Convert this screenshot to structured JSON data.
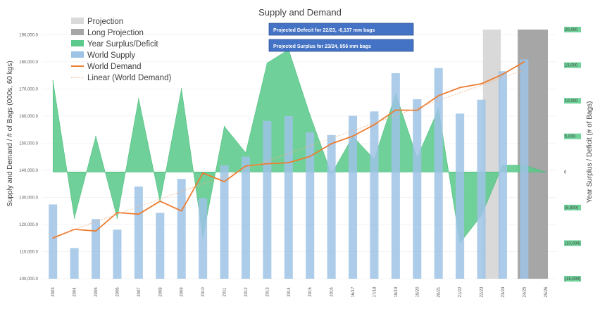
{
  "chart_data": {
    "type": "bar",
    "title": "Supply and Demand",
    "ylabel": "Supply and Demand / # of Bags (000s, 60 kgs)",
    "y2label": "Year Surplus / Deficit (# of Bags)",
    "ylim": [
      100000,
      195000
    ],
    "y2lim": [
      -15000,
      20000
    ],
    "y_ticks": [
      "100,000.0",
      "110,000.0",
      "120,000.0",
      "130,000.0",
      "140,000.0",
      "150,000.0",
      "160,000.0",
      "170,000.0",
      "180,000.0",
      "190,000.0"
    ],
    "y2_ticks": [
      "(15,000)",
      "(10,000)",
      "(5,000)",
      "0",
      "5,000",
      "10,000",
      "15,000",
      "20,000"
    ],
    "y2_tick_values": [
      -15000,
      -10000,
      -5000,
      0,
      5000,
      10000,
      15000,
      20000
    ],
    "categories": [
      "2003",
      "2004",
      "2005",
      "2006",
      "2007",
      "2008",
      "2009",
      "2010",
      "2011",
      "2012",
      "2013",
      "2014",
      "2015",
      "2016",
      "16/17",
      "17/18",
      "18/19",
      "19/20",
      "20/21",
      "21/22",
      "22/23",
      "23/24",
      "24/25",
      "25/26"
    ],
    "series": [
      {
        "name": "World Supply",
        "type": "bar",
        "color": "#9dc3e6",
        "values": [
          127400,
          111300,
          122000,
          118100,
          134000,
          124300,
          136800,
          129700,
          141800,
          145000,
          158200,
          160000,
          154000,
          153000,
          160100,
          161700,
          175800,
          166200,
          177700,
          160900,
          166000,
          176500,
          180900,
          null
        ]
      },
      {
        "name": "World Demand",
        "type": "line",
        "color": "#ed7d31",
        "values": [
          115000,
          118200,
          117600,
          124400,
          123800,
          128600,
          125000,
          139000,
          135800,
          141600,
          142400,
          142800,
          145100,
          149800,
          152600,
          156800,
          162200,
          162100,
          167500,
          170500,
          171900,
          175400,
          180000,
          null
        ]
      },
      {
        "name": "Year Surplus/Deficit",
        "type": "area",
        "axis": "secondary",
        "color": "#5bc98b",
        "values": [
          12800,
          -6500,
          5000,
          -6500,
          10300,
          -4200,
          11700,
          -9200,
          6400,
          2700,
          15300,
          17200,
          8000,
          -300,
          5000,
          1800,
          11000,
          2000,
          8900,
          -10000,
          -6137,
          956,
          956,
          0
        ]
      },
      {
        "name": "Linear (World Demand)",
        "type": "line",
        "style": "dotted",
        "color": "#f4b183",
        "values": [
          115400,
          118200,
          121000,
          123800,
          126600,
          129400,
          132200,
          135000,
          137800,
          140600,
          143400,
          146200,
          149000,
          151800,
          154600,
          157400,
          160200,
          163000,
          165800,
          168600,
          171400,
          174200,
          177000,
          null
        ]
      }
    ],
    "bands": [
      {
        "name": "Projection",
        "color": "#d9d9d9",
        "from": "23/24",
        "to": "23/24"
      },
      {
        "name": "Long Projection",
        "color": "#a6a6a6",
        "from": "24/25",
        "to": "25/26"
      }
    ],
    "legend": {
      "position": "top-left",
      "items": [
        {
          "label": "Projection",
          "color": "#d9d9d9",
          "kind": "box"
        },
        {
          "label": "Long Projection",
          "color": "#a6a6a6",
          "kind": "box"
        },
        {
          "label": "Year Surplus/Deficit",
          "color": "#5bc98b",
          "kind": "box"
        },
        {
          "label": "World Supply",
          "color": "#9dc3e6",
          "kind": "box"
        },
        {
          "label": "World Demand",
          "color": "#ed7d31",
          "kind": "line"
        },
        {
          "label": "Linear (World Demand)",
          "color": "#f4b183",
          "kind": "dotted"
        }
      ]
    },
    "annotations": [
      {
        "text": "Projected Defecit for 22/23, -6,137 mm bags"
      },
      {
        "text": "Projected Surplus for 23/24, 956 mm bags"
      }
    ]
  }
}
